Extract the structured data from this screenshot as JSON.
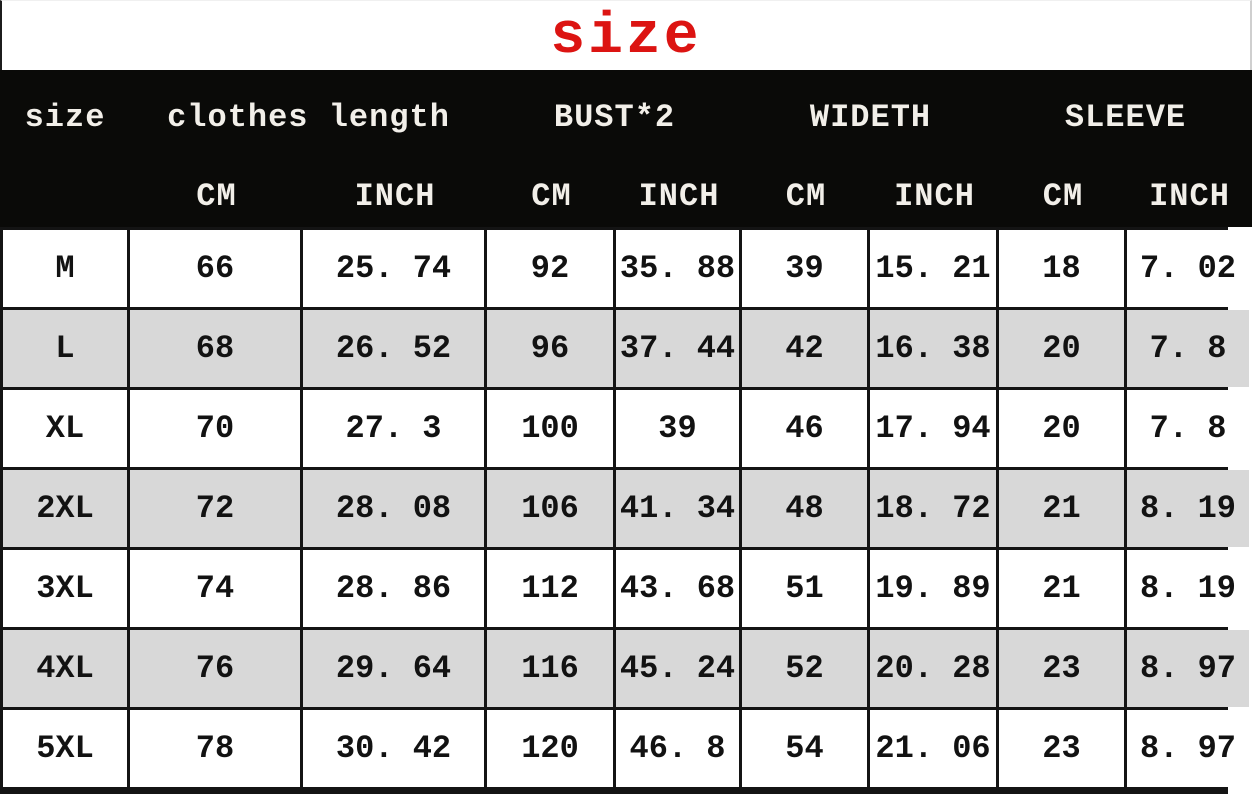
{
  "title": "size",
  "colors": {
    "title_red": "#dc1412",
    "header_bg": "#0a0a08",
    "header_text": "#f2efe9",
    "row_alt_bg": "#d8d8d8",
    "grid_line": "#141414"
  },
  "table": {
    "group_headers": [
      "size",
      "clothes length",
      "BUST*2",
      "WIDETH",
      "SLEEVE"
    ],
    "unit_headers": [
      "CM",
      "INCH",
      "CM",
      "INCH",
      "CM",
      "INCH",
      "CM",
      "INCH"
    ],
    "rows": [
      {
        "size": "M",
        "cells": [
          "66",
          "25. 74",
          "92",
          "35. 88",
          "39",
          "15. 21",
          "18",
          "7. 02"
        ]
      },
      {
        "size": "L",
        "cells": [
          "68",
          "26. 52",
          "96",
          "37. 44",
          "42",
          "16. 38",
          "20",
          "7. 8"
        ]
      },
      {
        "size": "XL",
        "cells": [
          "70",
          "27. 3",
          "100",
          "39",
          "46",
          "17. 94",
          "20",
          "7. 8"
        ]
      },
      {
        "size": "2XL",
        "cells": [
          "72",
          "28. 08",
          "106",
          "41. 34",
          "48",
          "18. 72",
          "21",
          "8. 19"
        ]
      },
      {
        "size": "3XL",
        "cells": [
          "74",
          "28. 86",
          "112",
          "43. 68",
          "51",
          "19. 89",
          "21",
          "8. 19"
        ]
      },
      {
        "size": "4XL",
        "cells": [
          "76",
          "29. 64",
          "116",
          "45. 24",
          "52",
          "20. 28",
          "23",
          "8. 97"
        ]
      },
      {
        "size": "5XL",
        "cells": [
          "78",
          "30. 42",
          "120",
          "46. 8",
          "54",
          "21. 06",
          "23",
          "8. 97"
        ]
      }
    ]
  }
}
